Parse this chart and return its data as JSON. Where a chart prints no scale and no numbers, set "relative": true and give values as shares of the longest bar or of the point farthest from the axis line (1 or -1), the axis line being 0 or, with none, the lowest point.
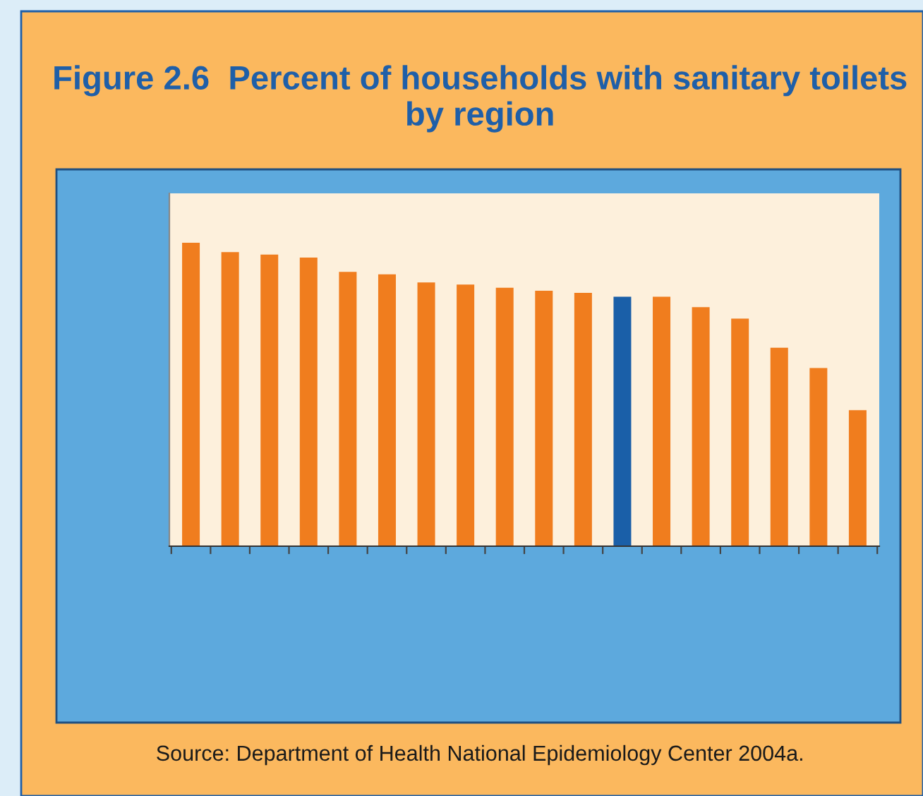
{
  "chart_data": {
    "type": "bar",
    "title": "Figure 2.6  Percent of households with sanitary toilets by region",
    "categories": [
      null,
      null,
      null,
      null,
      null,
      null,
      null,
      null,
      null,
      null,
      null,
      null,
      null,
      null,
      null,
      null,
      null,
      null
    ],
    "values": [
      1,
      0.969,
      0.961,
      0.951,
      0.904,
      0.896,
      0.869,
      0.862,
      0.852,
      0.842,
      0.835,
      0.822,
      0.822,
      0.788,
      0.75,
      0.654,
      0.587,
      0.448
    ],
    "colors": [
      "#f07d1e",
      "#f07d1e",
      "#f07d1e",
      "#f07d1e",
      "#f07d1e",
      "#f07d1e",
      "#f07d1e",
      "#f07d1e",
      "#f07d1e",
      "#f07d1e",
      "#f07d1e",
      "#1a5fa8",
      "#f07d1e",
      "#f07d1e",
      "#f07d1e",
      "#f07d1e",
      "#f07d1e",
      "#f07d1e"
    ],
    "relative": true,
    "annotations": [
      "Source: Department of Health National Epidemiology Center 2004a."
    ]
  }
}
